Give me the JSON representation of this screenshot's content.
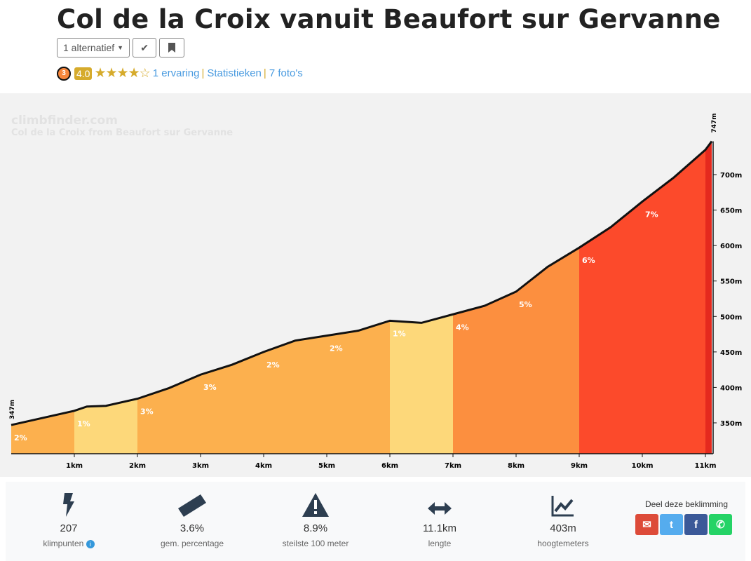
{
  "header": {
    "title": "Col de la Croix vanuit Beaufort sur Gervanne",
    "alt_label": "1 alternatief",
    "difficulty_badge": "3",
    "score": "4.0",
    "stars": 4,
    "links": [
      "1 ervaring",
      "Statistieken",
      "7 foto's"
    ]
  },
  "chart": {
    "watermark": "climbfinder.com",
    "subtitle": "Col de la Croix from Beaufort sur Gervanne",
    "start_label": "347m",
    "end_label": "747m"
  },
  "chart_data": {
    "type": "area",
    "xlabel": "km",
    "ylabel": "m",
    "xlim": [
      0,
      11.1
    ],
    "ylim": [
      306,
      760
    ],
    "x_ticks": [
      "1km",
      "2km",
      "3km",
      "4km",
      "5km",
      "6km",
      "7km",
      "8km",
      "9km",
      "10km",
      "11km"
    ],
    "y_ticks": [
      350,
      400,
      450,
      500,
      550,
      600,
      650,
      700
    ],
    "profile": [
      [
        0,
        347
      ],
      [
        0.5,
        357
      ],
      [
        1,
        367
      ],
      [
        1.2,
        373
      ],
      [
        1.5,
        374
      ],
      [
        2,
        384
      ],
      [
        2.5,
        399
      ],
      [
        3,
        418
      ],
      [
        3.5,
        432
      ],
      [
        4,
        450
      ],
      [
        4.5,
        466
      ],
      [
        5,
        473
      ],
      [
        5.5,
        480
      ],
      [
        6,
        494
      ],
      [
        6.5,
        491
      ],
      [
        7,
        503
      ],
      [
        7.5,
        515
      ],
      [
        8,
        535
      ],
      [
        8.5,
        570
      ],
      [
        9,
        597
      ],
      [
        9.5,
        626
      ],
      [
        10,
        662
      ],
      [
        10.5,
        696
      ],
      [
        11,
        735
      ],
      [
        11.1,
        747
      ]
    ],
    "segments": [
      {
        "from": 0,
        "to": 1,
        "grade": "2%",
        "color": "#fcb04e"
      },
      {
        "from": 1,
        "to": 2,
        "grade": "1%",
        "color": "#fdd87a"
      },
      {
        "from": 2,
        "to": 3,
        "grade": "3%",
        "color": "#fcb04e"
      },
      {
        "from": 3,
        "to": 4,
        "grade": "3%",
        "color": "#fcb04e"
      },
      {
        "from": 4,
        "to": 5,
        "grade": "2%",
        "color": "#fcb04e"
      },
      {
        "from": 5,
        "to": 6,
        "grade": "2%",
        "color": "#fcb04e"
      },
      {
        "from": 6,
        "to": 7,
        "grade": "1%",
        "color": "#fdd87a"
      },
      {
        "from": 7,
        "to": 8,
        "grade": "4%",
        "color": "#fc8f3f"
      },
      {
        "from": 8,
        "to": 9,
        "grade": "5%",
        "color": "#fc8f3f"
      },
      {
        "from": 9,
        "to": 10,
        "grade": "6%",
        "color": "#fc4a2b"
      },
      {
        "from": 10,
        "to": 11,
        "grade": "7%",
        "color": "#fc4a2b"
      },
      {
        "from": 11,
        "to": 11.1,
        "grade": "",
        "color": "#e5291e"
      }
    ]
  },
  "stats": [
    {
      "icon": "bolt-icon",
      "value": "207",
      "label": "klimpunten"
    },
    {
      "icon": "ruler-icon",
      "value": "3.6%",
      "label": "gem. percentage"
    },
    {
      "icon": "warning-icon",
      "value": "8.9%",
      "label": "steilste 100 meter"
    },
    {
      "icon": "arrows-h-icon",
      "value": "11.1km",
      "label": "lengte"
    },
    {
      "icon": "chart-line-icon",
      "value": "403m",
      "label": "hoogtemeters"
    }
  ],
  "share": {
    "title": "Deel deze beklimming",
    "buttons": [
      {
        "name": "email",
        "glyph": "✉",
        "color": "#dd4b39"
      },
      {
        "name": "twitter",
        "glyph": "t",
        "color": "#55acee"
      },
      {
        "name": "facebook",
        "glyph": "f",
        "color": "#3b5998"
      },
      {
        "name": "whatsapp",
        "glyph": "✆",
        "color": "#25d366"
      }
    ]
  }
}
